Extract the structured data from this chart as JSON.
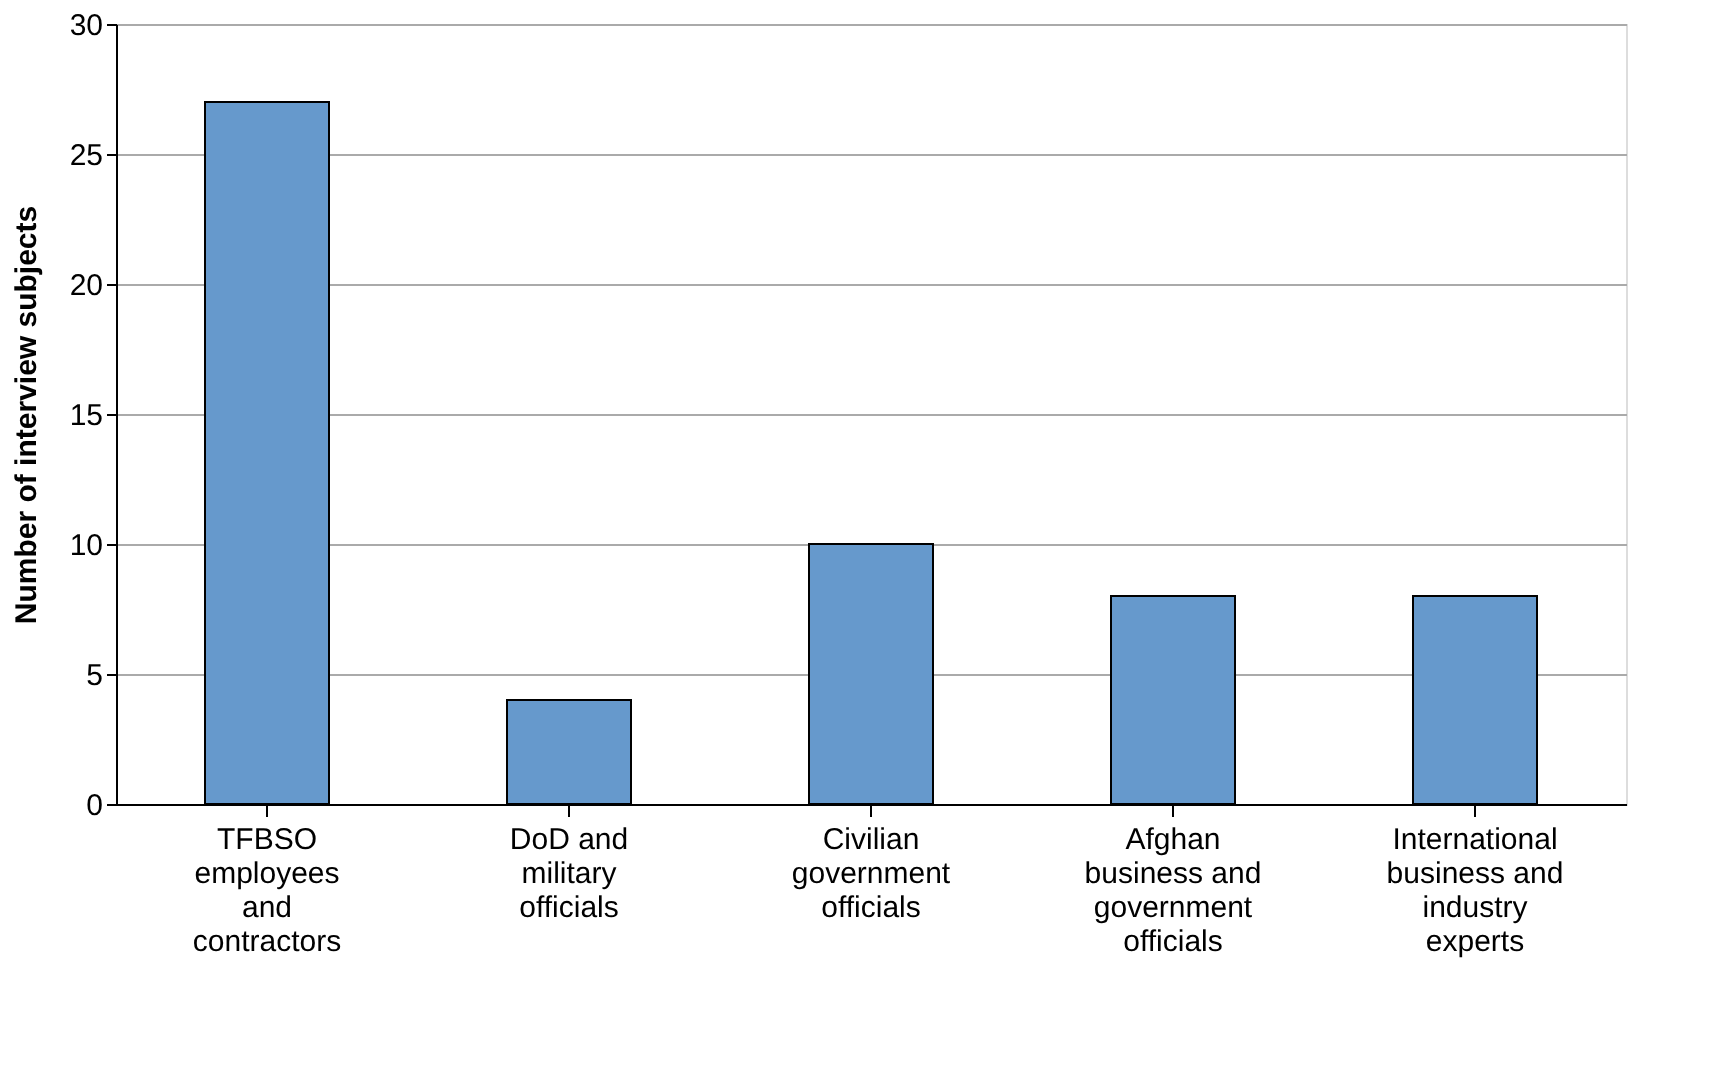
{
  "chart_data": {
    "type": "bar",
    "ylabel": "Number of interview subjects",
    "categories": [
      "TFBSO\nemployees\nand\ncontractors",
      "DoD and\nmilitary\nofficials",
      "Civilian\ngovernment\nofficials",
      "Afghan\nbusiness and\ngovernment\nofficials",
      "International\nbusiness and\nindustry\nexperts"
    ],
    "values": [
      27,
      4,
      10,
      8,
      8
    ],
    "color": "#6699cc",
    "ylim": [
      0,
      30
    ],
    "yticks": [
      0,
      5,
      10,
      15,
      20,
      25,
      30
    ],
    "grid": "y",
    "legend": false
  }
}
